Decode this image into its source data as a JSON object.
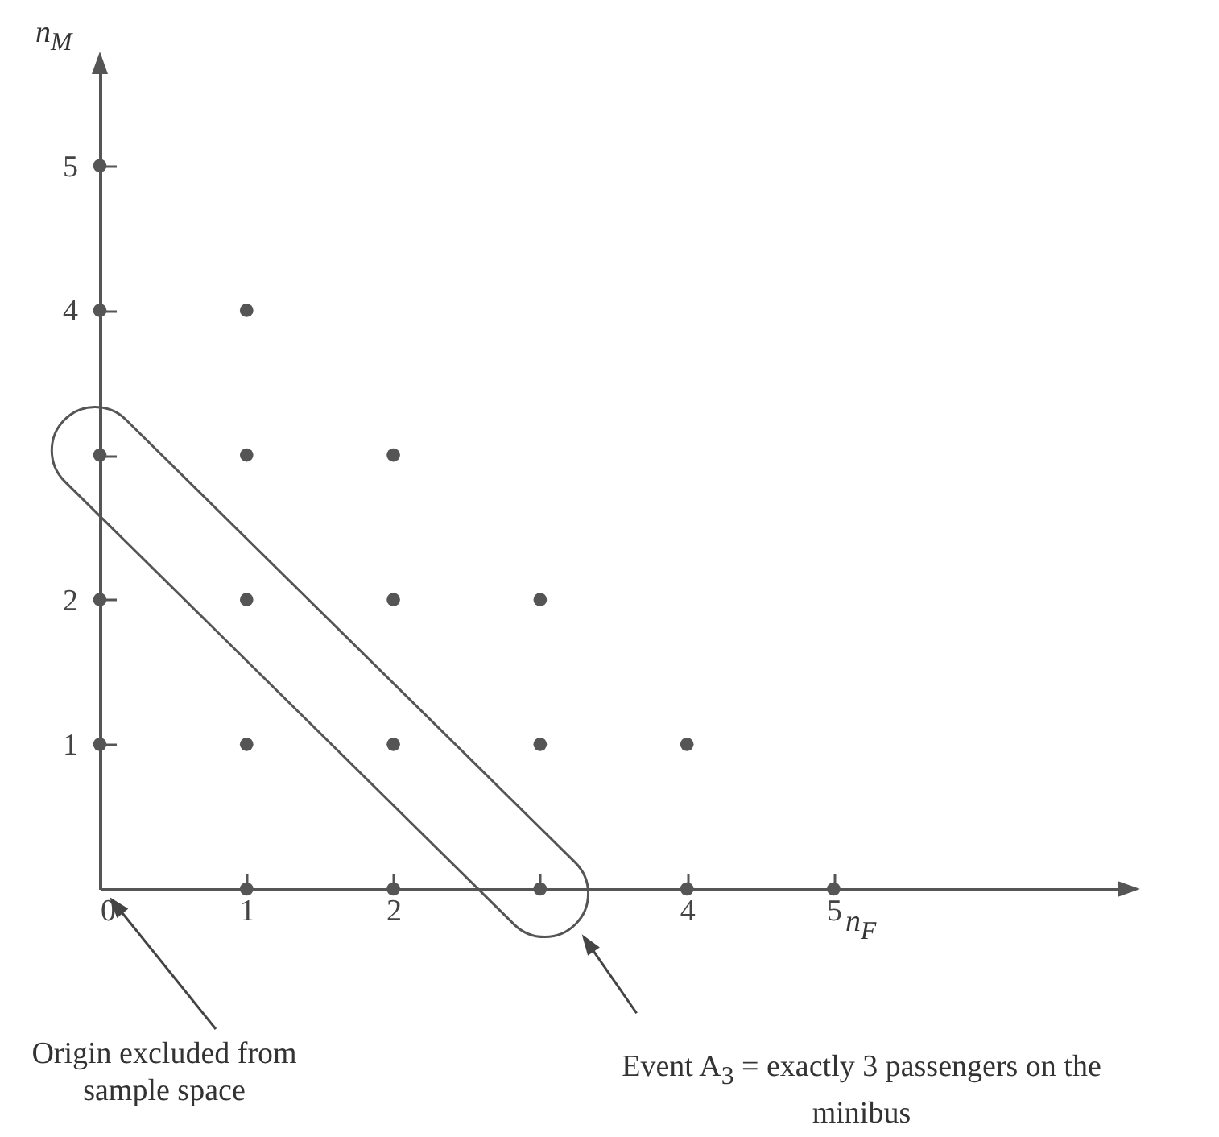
{
  "chart_data": {
    "type": "scatter",
    "xlabel": "n$_{F}$",
    "ylabel": "n$_{M}$",
    "x": [
      0,
      0,
      0,
      0,
      0,
      1,
      1,
      1,
      1,
      1,
      2,
      2,
      2,
      2,
      3,
      3,
      3,
      4,
      4,
      5
    ],
    "series": [
      {
        "color": "#555555",
        "values": [
          1,
          2,
          3,
          4,
          5,
          0,
          1,
          2,
          3,
          4,
          0,
          1,
          2,
          3,
          0,
          1,
          2,
          0,
          1,
          0
        ]
      }
    ],
    "xlim": [
      0,
      7
    ],
    "ylim": [
      0,
      5.7
    ],
    "xticks": [
      0,
      1,
      2,
      {
        "value": 3,
        "label": null
      },
      4,
      5
    ],
    "yticks": [
      1,
      2,
      {
        "value": 3,
        "label": null
      },
      4,
      5
    ],
    "grid": false,
    "marker": "circle",
    "annotations": [
      "Origin excluded from sample space",
      "Event A$_{3}$ = exactly 3 passengers on the minibus"
    ]
  }
}
